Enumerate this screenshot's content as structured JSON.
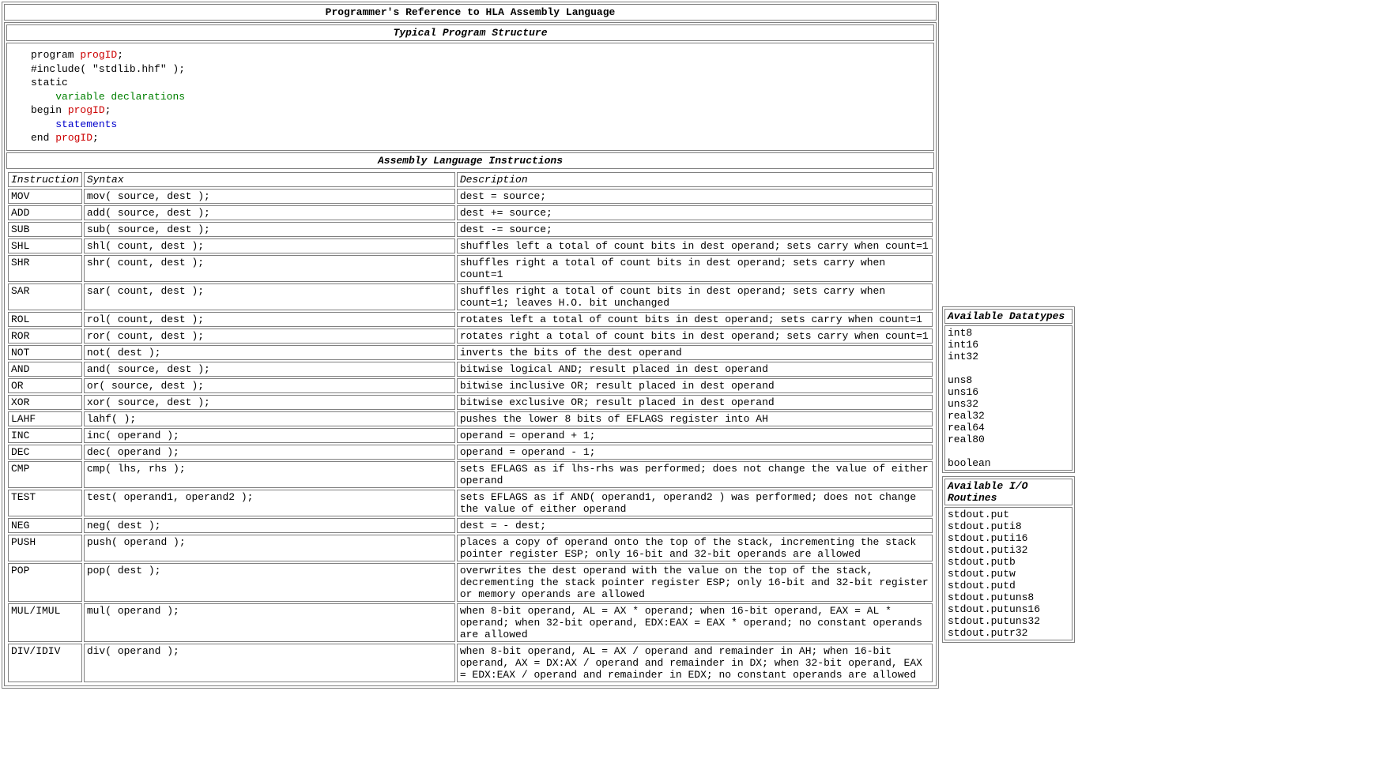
{
  "page_title": "Programmer's Reference to HLA Assembly Language",
  "typical_program_heading": "Typical Program Structure",
  "code_lines": [
    {
      "plain": "program ",
      "red": "progID",
      "tail": ";"
    },
    {
      "plain": "#include( \"stdlib.hhf\" );"
    },
    {
      "plain": "static"
    },
    {
      "indent": "    ",
      "green": "variable declarations"
    },
    {
      "plain": "begin ",
      "red": "progID",
      "tail": ";"
    },
    {
      "indent": "    ",
      "blue": "statements"
    },
    {
      "plain": "end ",
      "red": "progID",
      "tail": ";"
    }
  ],
  "asm_heading": "Assembly Language Instructions",
  "itable_headers": {
    "instr": "Instruction",
    "syntax": "Syntax",
    "desc": "Description"
  },
  "instructions": [
    {
      "instr": "MOV",
      "syntax": "mov( source, dest );",
      "desc": "dest = source;"
    },
    {
      "instr": "ADD",
      "syntax": "add( source, dest );",
      "desc": "dest += source;"
    },
    {
      "instr": "SUB",
      "syntax": "sub( source, dest );",
      "desc": "dest -= source;"
    },
    {
      "instr": "SHL",
      "syntax": "shl( count, dest );",
      "desc": "shuffles left a total of count bits in dest operand; sets carry when count=1"
    },
    {
      "instr": "SHR",
      "syntax": "shr( count, dest );",
      "desc": "shuffles right a total of count bits in dest operand; sets carry when count=1"
    },
    {
      "instr": "SAR",
      "syntax": "sar( count, dest );",
      "desc": "shuffles right a total of count bits in dest operand; sets carry when count=1; leaves H.O. bit unchanged"
    },
    {
      "instr": "ROL",
      "syntax": "rol( count, dest );",
      "desc": "rotates left a total of count bits in dest operand; sets carry when count=1"
    },
    {
      "instr": "ROR",
      "syntax": "ror( count, dest );",
      "desc": "rotates right a total of count bits in dest operand; sets carry when count=1"
    },
    {
      "instr": "NOT",
      "syntax": "not( dest );",
      "desc": "inverts the bits of the dest operand"
    },
    {
      "instr": "AND",
      "syntax": "and( source, dest );",
      "desc": "bitwise logical AND; result placed in dest operand"
    },
    {
      "instr": "OR",
      "syntax": "or( source, dest );",
      "desc": "bitwise inclusive OR; result placed in dest operand"
    },
    {
      "instr": "XOR",
      "syntax": "xor( source, dest );",
      "desc": "bitwise exclusive OR; result placed in dest operand"
    },
    {
      "instr": "LAHF",
      "syntax": "lahf( );",
      "desc": "pushes the lower 8 bits of EFLAGS register into AH"
    },
    {
      "instr": "INC",
      "syntax": "inc( operand );",
      "desc": "operand = operand + 1;"
    },
    {
      "instr": "DEC",
      "syntax": "dec( operand );",
      "desc": "operand = operand - 1;"
    },
    {
      "instr": "CMP",
      "syntax": "cmp( lhs, rhs );",
      "desc": "sets EFLAGS as if lhs-rhs was performed; does not change the value of either operand"
    },
    {
      "instr": "TEST",
      "syntax": "test( operand1, operand2 );",
      "desc": "sets EFLAGS as if AND( operand1, operand2 ) was performed; does not change the value of either operand"
    },
    {
      "instr": "NEG",
      "syntax": "neg( dest );",
      "desc": "dest = - dest;"
    },
    {
      "instr": "PUSH",
      "syntax": "push( operand );",
      "desc": "places a copy of operand onto the top of the stack, incrementing the stack pointer register ESP; only 16-bit and 32-bit operands are allowed"
    },
    {
      "instr": "POP",
      "syntax": "pop( dest );",
      "desc": "overwrites the dest operand with the value on the top of the stack, decrementing the stack pointer register ESP; only 16-bit and 32-bit register or memory operands are allowed"
    },
    {
      "instr": "MUL/IMUL",
      "syntax": "mul( operand );",
      "desc": "when 8-bit operand, AL = AX * operand; when 16-bit operand, EAX = AL * operand; when 32-bit operand, EDX:EAX = EAX * operand; no constant operands are allowed"
    },
    {
      "instr": "DIV/IDIV",
      "syntax": "div( operand );",
      "desc": "when 8-bit operand, AL = AX / operand and remainder in AH; when 16-bit operand, AX = DX:AX / operand and remainder in DX; when 32-bit operand, EAX = EDX:EAX / operand and remainder in EDX; no constant operands are allowed"
    }
  ],
  "datatypes_heading": "Available Datatypes",
  "datatypes": "int8\nint16\nint32\n\nuns8\nuns16\nuns32\nreal32\nreal64\nreal80\n\nboolean",
  "io_heading": "Available I/O Routines",
  "io_routines": "stdout.put\nstdout.puti8\nstdout.puti16\nstdout.puti32\nstdout.putb\nstdout.putw\nstdout.putd\nstdout.putuns8\nstdout.putuns16\nstdout.putuns32\nstdout.putr32",
  "colors": {
    "border": "#808080",
    "text": "#000000",
    "red": "#cc0000",
    "green": "#008000",
    "blue": "#0000cc",
    "background": "#ffffff"
  },
  "typography": {
    "font_family": "Courier New, monospace",
    "font_size_pt": 10
  }
}
